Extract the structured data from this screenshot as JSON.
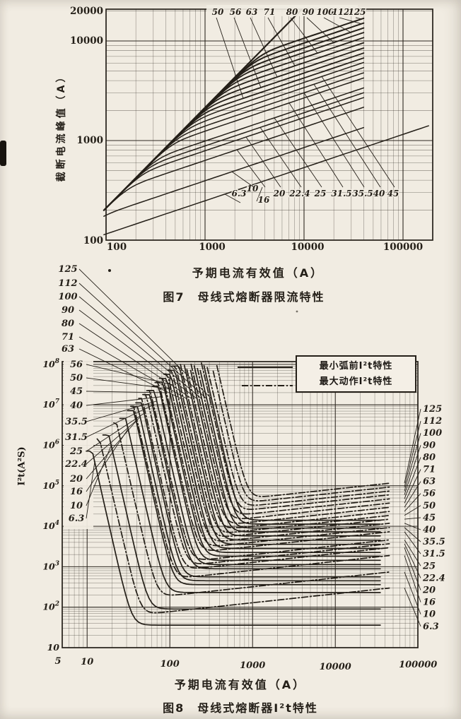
{
  "page": {
    "paper": "#f1ece2",
    "ink": "#241f18"
  },
  "figure7": {
    "y_axis_title": "截断电流峰值（A）",
    "x_axis_title": "予期电流有效值（A）",
    "caption": "图7　母线式熔断器限流特性",
    "x_tick_labels": [
      "100",
      "1000",
      "10000",
      "100000"
    ],
    "y_tick_labels": [
      "20000",
      "10000",
      "1000",
      "100"
    ]
  },
  "figure8": {
    "y_axis_title": "I²t(A²S)",
    "x_axis_title": "予期电流有效值（A）",
    "caption": "图8　母线式熔断器I²t特性",
    "legend": {
      "min_prearc": "最小弧前I²t特性",
      "max_operating": "最大动作I²t特性"
    },
    "x_tick_labels": [
      "5",
      "10",
      "100",
      "1000",
      "10000",
      "100000"
    ],
    "y_tick_exponents": [
      8,
      7,
      6,
      5,
      4,
      3,
      2,
      1
    ]
  },
  "chart_data": [
    {
      "id": "figure7",
      "type": "line",
      "title": "图7　母线式熔断器限流特性",
      "xlabel": "予期电流有效值（A）",
      "ylabel": "截断电流峰值（A）",
      "x_axis": {
        "scale": "log",
        "range": [
          100,
          200000
        ],
        "ticks": [
          100,
          1000,
          10000,
          100000
        ]
      },
      "y_axis": {
        "scale": "log",
        "range": [
          100,
          20000
        ],
        "ticks": [
          100,
          1000,
          10000,
          20000
        ]
      },
      "grid": "log minor + major, both axes",
      "prospective_peak_line": {
        "peak_factor": 2.1,
        "from_rms": 100,
        "exits_top_at_rms": 9500
      },
      "curve_model": {
        "cutoff_slope_loglog": 0.333,
        "curves_end_at_rms": 40000
      },
      "series": [
        {
          "rating": "6.3",
          "amps": 6.3,
          "cutoff_peak_at_40kA_A": 850
        },
        {
          "rating": "10",
          "amps": 10,
          "cutoff_peak_at_40kA_A": 1350
        },
        {
          "rating": "16",
          "amps": 16,
          "cutoff_peak_at_40kA_A": 2160
        },
        {
          "rating": "20",
          "amps": 20,
          "cutoff_peak_at_40kA_A": 2700
        },
        {
          "rating": "22.4",
          "amps": 22.4,
          "cutoff_peak_at_40kA_A": 3020
        },
        {
          "rating": "25",
          "amps": 25,
          "cutoff_peak_at_40kA_A": 3380
        },
        {
          "rating": "31.5",
          "amps": 31.5,
          "cutoff_peak_at_40kA_A": 4250
        },
        {
          "rating": "35.5",
          "amps": 35.5,
          "cutoff_peak_at_40kA_A": 4790
        },
        {
          "rating": "40",
          "amps": 40,
          "cutoff_peak_at_40kA_A": 5400
        },
        {
          "rating": "45",
          "amps": 45,
          "cutoff_peak_at_40kA_A": 6080
        },
        {
          "rating": "50",
          "amps": 50,
          "cutoff_peak_at_40kA_A": 6750
        },
        {
          "rating": "56",
          "amps": 56,
          "cutoff_peak_at_40kA_A": 7560
        },
        {
          "rating": "63",
          "amps": 63,
          "cutoff_peak_at_40kA_A": 8500
        },
        {
          "rating": "71",
          "amps": 71,
          "cutoff_peak_at_40kA_A": 9590
        },
        {
          "rating": "80",
          "amps": 80,
          "cutoff_peak_at_40kA_A": 10800
        },
        {
          "rating": "90",
          "amps": 90,
          "cutoff_peak_at_40kA_A": 12150
        },
        {
          "rating": "100",
          "amps": 100,
          "cutoff_peak_at_40kA_A": 13500
        },
        {
          "rating": "112",
          "amps": 112,
          "cutoff_peak_at_40kA_A": 15120
        },
        {
          "rating": "125",
          "amps": 125,
          "cutoff_peak_at_40kA_A": 16900
        }
      ]
    },
    {
      "id": "figure8",
      "type": "line",
      "title": "图8　母线式熔断器I²t特性",
      "xlabel": "予期电流有效值（A）",
      "ylabel": "I²t(A²S)",
      "x_axis": {
        "scale": "log",
        "range": [
          5,
          100000
        ],
        "ticks": [
          5,
          10,
          100,
          1000,
          10000,
          100000
        ]
      },
      "y_axis": {
        "scale": "log",
        "range": [
          10,
          100000000
        ],
        "ticks": [
          10,
          100,
          1000,
          10000,
          100000,
          1000000,
          10000000,
          100000000
        ]
      },
      "legend": [
        "最小弧前I²t特性",
        "最大动作I²t特性"
      ],
      "legend_styles": [
        "solid",
        "dash-dot"
      ],
      "series": [
        {
          "rating": "6.3",
          "amps": 6.3,
          "min_prearc_I2t_A2s": 36,
          "max_operating_I2t_at_40kA_A2s": 290
        },
        {
          "rating": "10",
          "amps": 10,
          "min_prearc_I2t_A2s": 90,
          "max_operating_I2t_at_40kA_A2s": 720
        },
        {
          "rating": "16",
          "amps": 16,
          "min_prearc_I2t_A2s": 230,
          "max_operating_I2t_at_40kA_A2s": 1840
        },
        {
          "rating": "20",
          "amps": 20,
          "min_prearc_I2t_A2s": 360,
          "max_operating_I2t_at_40kA_A2s": 2880
        },
        {
          "rating": "22.4",
          "amps": 22.4,
          "min_prearc_I2t_A2s": 450,
          "max_operating_I2t_at_40kA_A2s": 3600
        },
        {
          "rating": "25",
          "amps": 25,
          "min_prearc_I2t_A2s": 560,
          "max_operating_I2t_at_40kA_A2s": 4480
        },
        {
          "rating": "31.5",
          "amps": 31.5,
          "min_prearc_I2t_A2s": 890,
          "max_operating_I2t_at_40kA_A2s": 7120
        },
        {
          "rating": "35.5",
          "amps": 35.5,
          "min_prearc_I2t_A2s": 1130,
          "max_operating_I2t_at_40kA_A2s": 9040
        },
        {
          "rating": "40",
          "amps": 40,
          "min_prearc_I2t_A2s": 1440,
          "max_operating_I2t_at_40kA_A2s": 11520
        },
        {
          "rating": "45",
          "amps": 45,
          "min_prearc_I2t_A2s": 1820,
          "max_operating_I2t_at_40kA_A2s": 14560
        },
        {
          "rating": "50",
          "amps": 50,
          "min_prearc_I2t_A2s": 2250,
          "max_operating_I2t_at_40kA_A2s": 18000
        },
        {
          "rating": "56",
          "amps": 56,
          "min_prearc_I2t_A2s": 2820,
          "max_operating_I2t_at_40kA_A2s": 22600
        },
        {
          "rating": "63",
          "amps": 63,
          "min_prearc_I2t_A2s": 3570,
          "max_operating_I2t_at_40kA_A2s": 28600
        },
        {
          "rating": "71",
          "amps": 71,
          "min_prearc_I2t_A2s": 4540,
          "max_operating_I2t_at_40kA_A2s": 36300
        },
        {
          "rating": "80",
          "amps": 80,
          "min_prearc_I2t_A2s": 5760,
          "max_operating_I2t_at_40kA_A2s": 46100
        },
        {
          "rating": "90",
          "amps": 90,
          "min_prearc_I2t_A2s": 7290,
          "max_operating_I2t_at_40kA_A2s": 58300
        },
        {
          "rating": "100",
          "amps": 100,
          "min_prearc_I2t_A2s": 9000,
          "max_operating_I2t_at_40kA_A2s": 72000
        },
        {
          "rating": "112",
          "amps": 112,
          "min_prearc_I2t_A2s": 11290,
          "max_operating_I2t_at_40kA_A2s": 90300
        },
        {
          "rating": "125",
          "amps": 125,
          "min_prearc_I2t_A2s": 14060,
          "max_operating_I2t_at_40kA_A2s": 112500
        }
      ]
    }
  ]
}
